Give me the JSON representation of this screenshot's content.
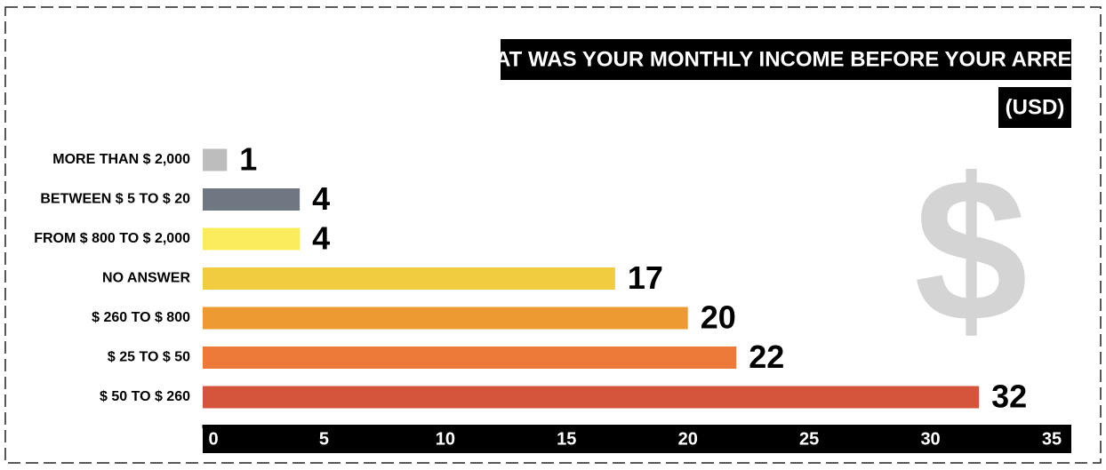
{
  "chart_data": {
    "type": "bar",
    "orientation": "horizontal",
    "title": "WHAT WAS YOUR MONTHLY INCOME BEFORE YOUR ARREST?",
    "subtitle": "(USD)",
    "watermark": "$",
    "categories": [
      "MORE THAN $ 2,000",
      "BETWEEN $ 5 TO $ 20",
      "FROM $ 800 TO $ 2,000",
      "NO ANSWER",
      "$ 260 TO $ 800",
      "$ 25 TO $ 50",
      "$ 50 TO $ 260"
    ],
    "values": [
      1,
      4,
      4,
      17,
      20,
      22,
      32
    ],
    "colors": [
      "#bdbdbd",
      "#6f7882",
      "#fbec5d",
      "#f2cc3f",
      "#ee9a33",
      "#ee7a3a",
      "#d5553c"
    ],
    "xlim": [
      0,
      35
    ],
    "xticks": [
      0,
      5,
      10,
      15,
      20,
      25,
      30,
      35
    ],
    "grid": false
  }
}
